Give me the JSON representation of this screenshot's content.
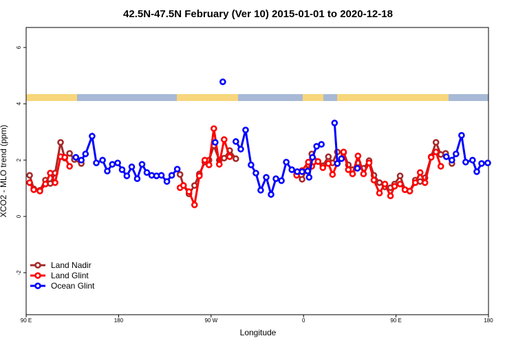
{
  "chart_data": {
    "type": "line",
    "title": "42.5N-47.5N February (Ver 10)   2015-01-01 to 2020-12-18",
    "x_label": "Longitude",
    "y_label": "XCO2 - MLO trend (ppm)",
    "xlim": [
      90,
      540
    ],
    "ylim": [
      -3.49,
      6.71
    ],
    "xticks": [
      {
        "value": 90,
        "label": "90 E"
      },
      180,
      {
        "value": 270,
        "label": "90 W"
      },
      {
        "value": 360,
        "label": "0"
      },
      {
        "value": 450,
        "label": "90 E"
      },
      {
        "value": 540,
        "label": "180"
      }
    ],
    "yticks": [
      -2,
      0,
      2,
      4,
      6
    ],
    "legend": "bottom-left",
    "series": [
      {
        "name": "Land Nadir",
        "color": "#a52a2a",
        "x": [
          93.4,
          97.4,
          103.4,
          108.8,
          113.5,
          118.2,
          123.5,
          127.6,
          132.3,
          137,
          143.7,
          null,
          239.8,
          243.1,
          248.5,
          253.9,
          258.6,
          263.9,
          268,
          272.7,
          278,
          282.7,
          288.1,
          294.1,
          null,
          353.3,
          358.6,
          364.7,
          368,
          374.1,
          378.8,
          384.2,
          388.2,
          392.9,
          399,
          403.6,
          407.7,
          413,
          418.4,
          423.8,
          428.5,
          433.9,
          439.2,
          444.6,
          448.6,
          454,
          458.7,
          463.4,
          468.8,
          473.5,
          478.2,
          484.2,
          488.9,
          493.6,
          498.3,
          504.4
        ],
        "values": [
          1.46,
          0.98,
          0.93,
          1.29,
          1.17,
          1.54,
          2.63,
          2.07,
          2.24,
          2.02,
          1.88,
          null,
          1.49,
          1.1,
          0.8,
          1.1,
          1.51,
          1.93,
          2.0,
          2.51,
          2.0,
          2.07,
          2.34,
          2.05,
          null,
          1.51,
          1.32,
          1.83,
          2.22,
          1.95,
          1.8,
          2.12,
          1.9,
          2.29,
          2.27,
          1.83,
          1.66,
          1.9,
          1.71,
          1.98,
          1.46,
          1.2,
          1.05,
          1.02,
          1.15,
          1.44,
          0.95,
          0.9,
          1.29,
          1.24,
          1.37,
          2.12,
          2.63,
          2.2,
          2.24,
          1.88
        ]
      },
      {
        "name": "Land Glint",
        "color": "#ff0000",
        "x": [
          93.4,
          97.4,
          103.4,
          108.8,
          113.5,
          118.2,
          123.5,
          127.6,
          132.3,
          null,
          239.8,
          243.1,
          248.5,
          253.9,
          258.6,
          263.9,
          268,
          272.7,
          278,
          282.7,
          288.1,
          null,
          353.3,
          358.6,
          364.7,
          368,
          374.1,
          378.8,
          384.2,
          388.2,
          392.9,
          399,
          403.6,
          407.7,
          413,
          418.4,
          423.8,
          428.5,
          433.9,
          439.2,
          444.6,
          448.6,
          454,
          458.7,
          463.4,
          468.8,
          473.5,
          478.2,
          484.2,
          488.9,
          493.6
        ],
        "values": [
          1.2,
          0.95,
          0.9,
          1.15,
          1.54,
          1.2,
          2.12,
          2.1,
          1.78,
          null,
          1.02,
          1.1,
          0.88,
          0.41,
          1.44,
          2.0,
          1.83,
          3.12,
          1.85,
          2.73,
          2.12,
          null,
          1.46,
          1.63,
          1.93,
          1.78,
          1.95,
          1.73,
          1.88,
          1.49,
          1.88,
          2.29,
          1.66,
          1.51,
          2.15,
          1.51,
          1.9,
          1.29,
          0.83,
          1.15,
          0.73,
          1.07,
          1.15,
          0.95,
          0.9,
          1.2,
          1.56,
          1.2,
          2.1,
          2.29,
          1.78
        ]
      },
      {
        "name": "Ocean Glint",
        "color": "#0000ff",
        "x": [
          138.4,
          143.7,
          147.8,
          154.2,
          158.3,
          164.4,
          169,
          173.9,
          179.1,
          183.4,
          188,
          192.8,
          198.1,
          202.8,
          207.5,
          212.2,
          216.9,
          221.6,
          227,
          231.7,
          237.1,
          null,
          274,
          null,
          281.4,
          null,
          294.1,
          298.9,
          303.6,
          308.9,
          313.6,
          318.3,
          323.7,
          328.4,
          333.1,
          338.5,
          343.2,
          348.6,
          353.9,
          358.6,
          364,
          365.4,
          368.7,
          372.7,
          377.4,
          null,
          390.2,
          392.9,
          396.9,
          null,
          412.4,
          null,
          499,
          504.4,
          508.4,
          513.8,
          517.8,
          524.5,
          528.6,
          533.3,
          539.3
        ],
        "values": [
          2.1,
          2.0,
          2.22,
          2.85,
          1.9,
          2.0,
          1.61,
          1.85,
          1.9,
          1.66,
          1.44,
          1.76,
          1.34,
          1.85,
          1.56,
          1.46,
          1.44,
          1.46,
          1.24,
          1.46,
          1.68,
          null,
          2.63,
          null,
          4.78,
          null,
          2.66,
          2.39,
          3.07,
          1.83,
          1.54,
          0.93,
          1.39,
          0.78,
          1.34,
          1.27,
          1.93,
          1.66,
          1.59,
          1.59,
          1.61,
          1.39,
          2.1,
          2.49,
          2.56,
          null,
          3.32,
          1.88,
          2.05,
          null,
          1.71,
          null,
          2.12,
          2.0,
          2.22,
          2.88,
          1.93,
          2.0,
          1.59,
          1.88,
          1.9
        ]
      }
    ]
  }
}
